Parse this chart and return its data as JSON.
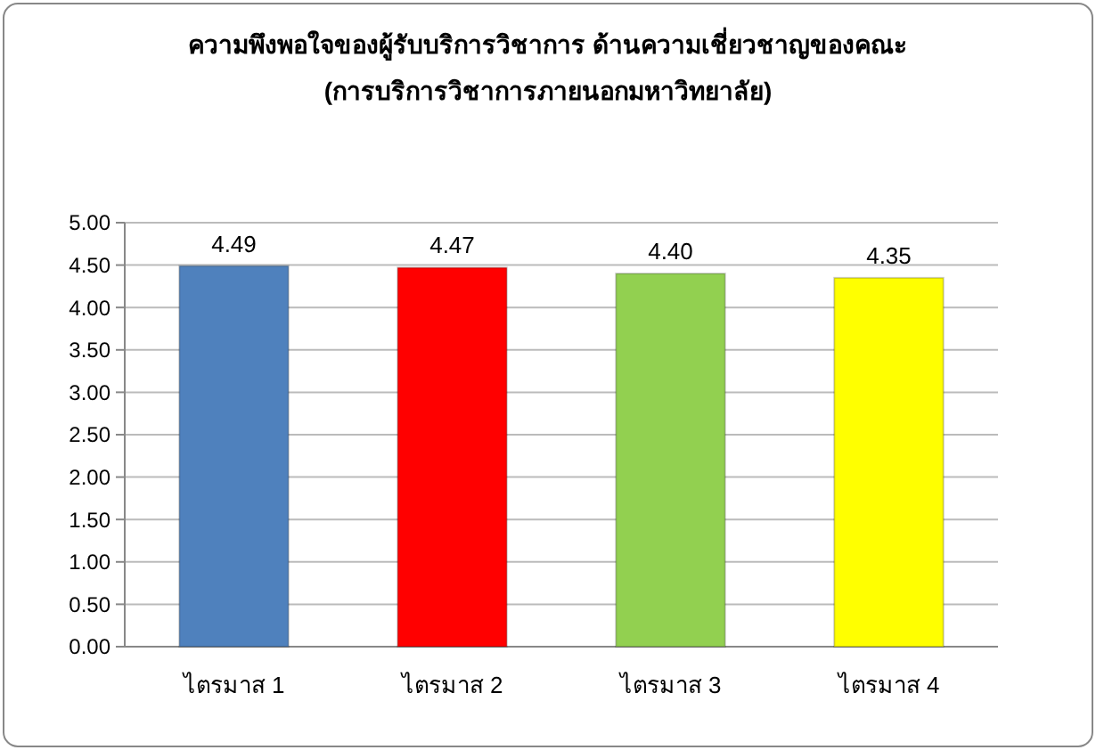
{
  "chart_data": {
    "type": "bar",
    "title": "ความพึงพอใจของผู้รับบริการวิชาการ  ด้านความเชี่ยวชาญของคณะ",
    "subtitle": "(การบริการวิชาการภายนอกมหาวิทยาลัย)",
    "categories": [
      "ไตรมาส 1",
      "ไตรมาส 2",
      "ไตรมาส 3",
      "ไตรมาส 4"
    ],
    "values": [
      4.49,
      4.47,
      4.4,
      4.35
    ],
    "colors": [
      "#4f81bd",
      "#ff0000",
      "#92d050",
      "#ffff00"
    ],
    "ylim": [
      0,
      5
    ],
    "yticks": [
      {
        "value": 0,
        "label": "0.00"
      },
      {
        "value": 0.5,
        "label": "0.50"
      },
      {
        "value": 1,
        "label": "1.00"
      },
      {
        "value": 1.5,
        "label": "1.50"
      },
      {
        "value": 2,
        "label": "2.00"
      },
      {
        "value": 2.5,
        "label": "2.50"
      },
      {
        "value": 3,
        "label": "3.00"
      },
      {
        "value": 3.5,
        "label": "3.50"
      },
      {
        "value": 4,
        "label": "4.00"
      },
      {
        "value": 4.5,
        "label": "4.50"
      },
      {
        "value": 5,
        "label": "5.00"
      }
    ],
    "value_labels": [
      "4.49",
      "4.47",
      "4.40",
      "4.35"
    ],
    "grid": true
  }
}
